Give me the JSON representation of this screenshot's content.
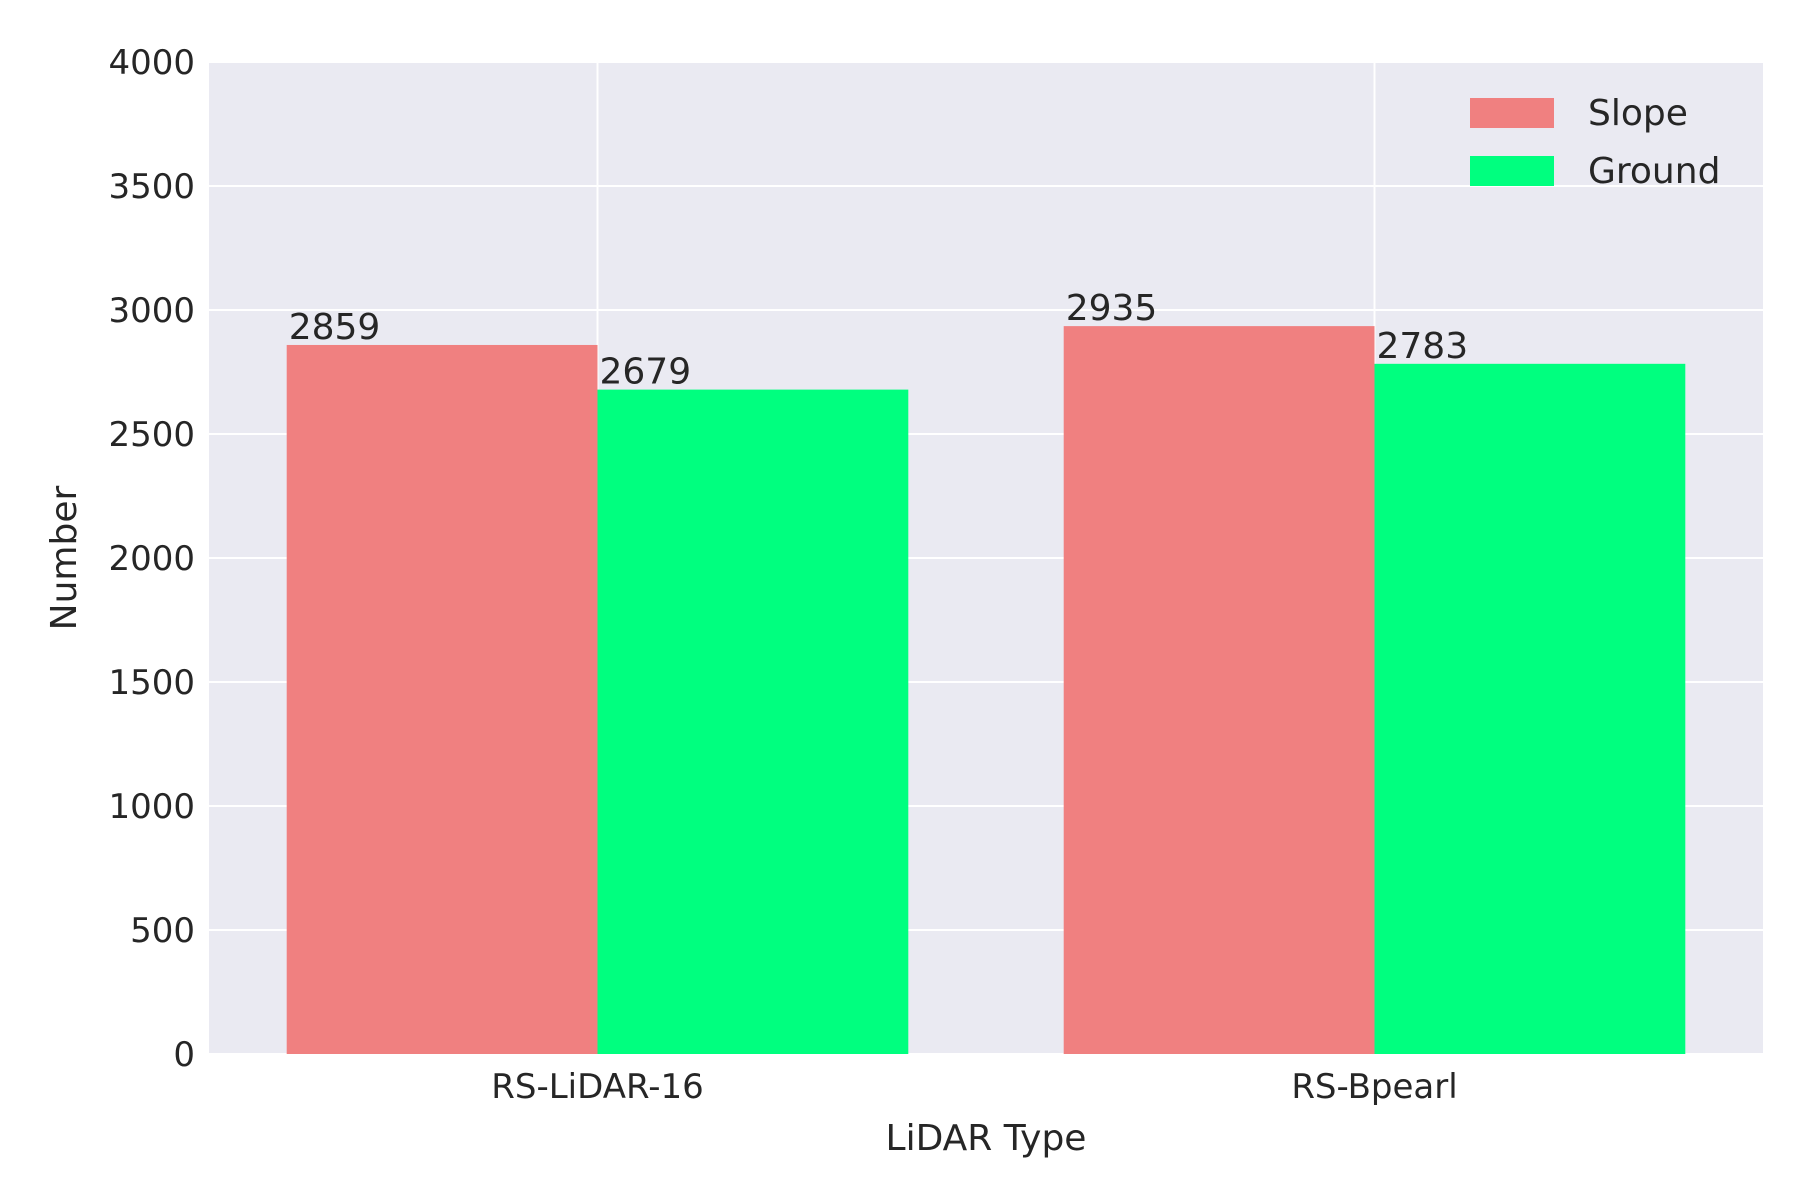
{
  "chart_data": {
    "type": "bar",
    "title": "",
    "xlabel": "LiDAR Type",
    "ylabel": "Number",
    "categories": [
      "RS-LiDAR-16",
      "RS-Bpearl"
    ],
    "series": [
      {
        "name": "Slope",
        "values": [
          2859,
          2935
        ],
        "color": "#f08080"
      },
      {
        "name": "Ground",
        "values": [
          2679,
          2783
        ],
        "color": "#00ff7f"
      }
    ],
    "ylim": [
      0,
      4000
    ],
    "yticks": [
      0,
      500,
      1000,
      1500,
      2000,
      2500,
      3000,
      3500,
      4000
    ],
    "grid": true,
    "legend_position": "top-right",
    "background_color": "#eaeaf2",
    "grid_color": "#ffffff"
  }
}
